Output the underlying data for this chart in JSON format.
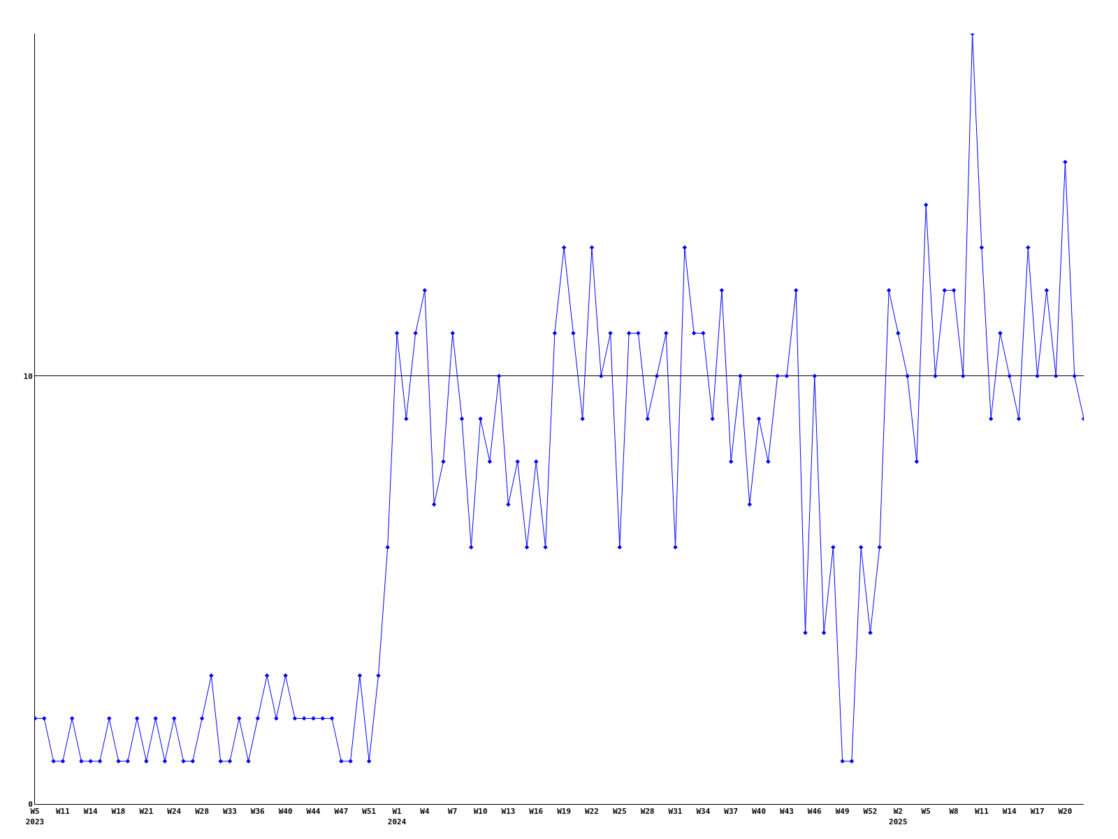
{
  "chart_data": {
    "type": "line",
    "categories": [
      "W5\n2023",
      null,
      null,
      "W11",
      null,
      null,
      "W14",
      null,
      null,
      "W18",
      null,
      null,
      "W21",
      null,
      null,
      "W24",
      null,
      null,
      "W28",
      null,
      null,
      "W33",
      null,
      null,
      "W36",
      null,
      null,
      "W40",
      null,
      null,
      "W44",
      null,
      null,
      "W47",
      null,
      null,
      "W51",
      null,
      null,
      "W1\n2024",
      null,
      null,
      "W4",
      null,
      null,
      "W7",
      null,
      null,
      "W10",
      null,
      null,
      "W13",
      null,
      null,
      "W16",
      null,
      null,
      "W19",
      null,
      null,
      "W22",
      null,
      null,
      "W25",
      null,
      null,
      "W28",
      null,
      null,
      "W31",
      null,
      null,
      "W34",
      null,
      null,
      "W37",
      null,
      null,
      "W40",
      null,
      null,
      "W43",
      null,
      null,
      "W46",
      null,
      null,
      "W49",
      null,
      null,
      "W52",
      null,
      null,
      "W2\n2025",
      null,
      null,
      "W5",
      null,
      null,
      "W8",
      null,
      null,
      "W11",
      null,
      null,
      "W14",
      null,
      null,
      "W17",
      null,
      null,
      "W20",
      null,
      null
    ],
    "series": [
      {
        "color": "#0000ff",
        "values": [
          2,
          2,
          1,
          1,
          2,
          1,
          1,
          1,
          2,
          1,
          1,
          2,
          1,
          2,
          1,
          2,
          1,
          1,
          2,
          3,
          1,
          1,
          2,
          1,
          2,
          3,
          2,
          3,
          2,
          2,
          2,
          2,
          2,
          1,
          1,
          3,
          1,
          3,
          6,
          11,
          9,
          11,
          12,
          7,
          8,
          11,
          9,
          6,
          9,
          8,
          10,
          7,
          8,
          6,
          8,
          6,
          11,
          13,
          11,
          9,
          13,
          10,
          11,
          6,
          11,
          11,
          9,
          10,
          11,
          6,
          13,
          11,
          11,
          9,
          12,
          8,
          10,
          7,
          9,
          8,
          10,
          10,
          12,
          4,
          10,
          4,
          6,
          1,
          1,
          6,
          4,
          6,
          12,
          11,
          10,
          8,
          14,
          10,
          12,
          12,
          10,
          18,
          13,
          9,
          11,
          10,
          9,
          13,
          10,
          12,
          10,
          15,
          10,
          9
        ]
      }
    ],
    "ylim": [
      0,
      18
    ],
    "yticks": [
      0,
      10
    ],
    "grid": "y",
    "marker": "diamond",
    "line_style": "solid"
  }
}
